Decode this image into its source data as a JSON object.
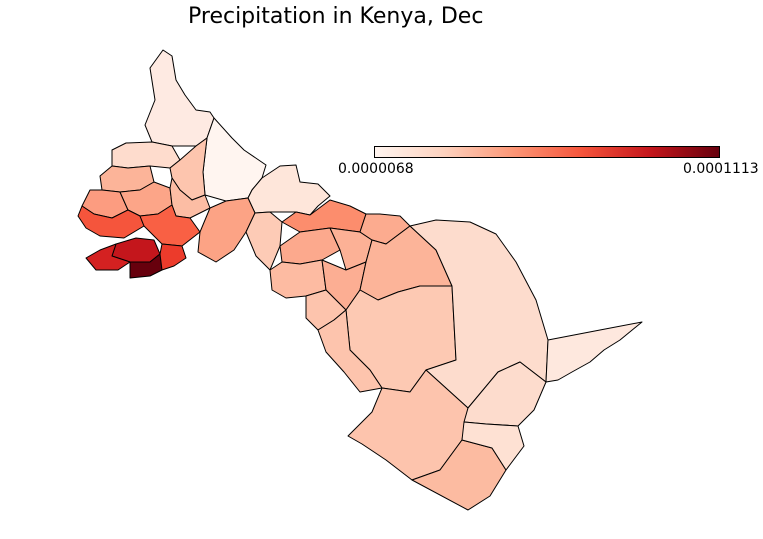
{
  "map": {
    "title": "Precipitation in Kenya, Dec",
    "colorbar": {
      "min_label": "0.0000068",
      "max_label": "0.0001113",
      "colormap": "Reds",
      "colors": [
        "#fff5f0",
        "#fdd2bf",
        "#fc9777",
        "#f5553c",
        "#c4161c",
        "#67000d"
      ]
    }
  }
}
